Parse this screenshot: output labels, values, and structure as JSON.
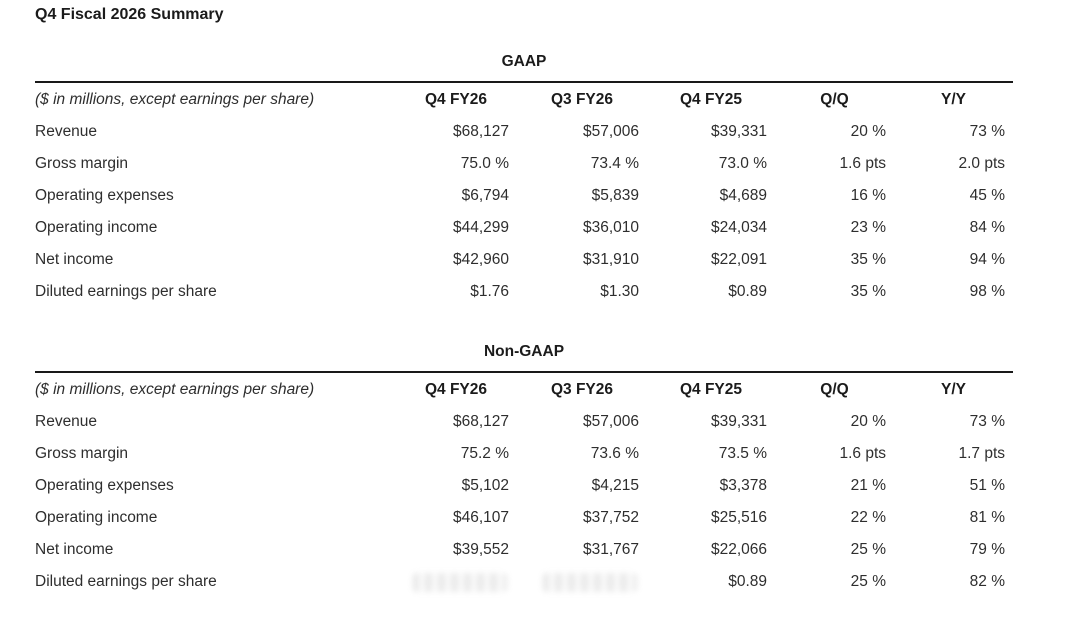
{
  "page": {
    "title": "Q4 Fiscal 2026 Summary"
  },
  "tables": [
    {
      "heading": "GAAP",
      "note": "($ in millions, except earnings per share)",
      "columns": [
        "Q4 FY26",
        "Q3 FY26",
        "Q4 FY25",
        "Q/Q",
        "Y/Y"
      ],
      "rows": [
        {
          "label": "Revenue",
          "values": [
            "$68,127",
            "$57,006",
            "$39,331",
            "20 %",
            "73 %"
          ]
        },
        {
          "label": "Gross margin",
          "values": [
            "75.0 %",
            "73.4 %",
            "73.0 %",
            "1.6 pts",
            "2.0 pts"
          ]
        },
        {
          "label": "Operating expenses",
          "values": [
            "$6,794",
            "$5,839",
            "$4,689",
            "16 %",
            "45 %"
          ]
        },
        {
          "label": "Operating income",
          "values": [
            "$44,299",
            "$36,010",
            "$24,034",
            "23 %",
            "84 %"
          ]
        },
        {
          "label": "Net income",
          "values": [
            "$42,960",
            "$31,910",
            "$22,091",
            "35 %",
            "94 %"
          ]
        },
        {
          "label": "Diluted earnings per share",
          "values": [
            "$1.76",
            "$1.30",
            "$0.89",
            "35 %",
            "98 %"
          ]
        }
      ]
    },
    {
      "heading": "Non-GAAP",
      "note": "($ in millions, except earnings per share)",
      "columns": [
        "Q4 FY26",
        "Q3 FY26",
        "Q4 FY25",
        "Q/Q",
        "Y/Y"
      ],
      "rows": [
        {
          "label": "Revenue",
          "values": [
            "$68,127",
            "$57,006",
            "$39,331",
            "20 %",
            "73 %"
          ]
        },
        {
          "label": "Gross margin",
          "values": [
            "75.2 %",
            "73.6 %",
            "73.5 %",
            "1.6 pts",
            "1.7 pts"
          ]
        },
        {
          "label": "Operating expenses",
          "values": [
            "$5,102",
            "$4,215",
            "$3,378",
            "21 %",
            "51 %"
          ]
        },
        {
          "label": "Operating income",
          "values": [
            "$46,107",
            "$37,752",
            "$25,516",
            "22 %",
            "81 %"
          ]
        },
        {
          "label": "Net income",
          "values": [
            "$39,552",
            "$31,767",
            "$22,066",
            "25 %",
            "79 %"
          ]
        },
        {
          "label": "Diluted earnings per share",
          "values": [
            null,
            null,
            "$0.89",
            "25 %",
            "82 %"
          ],
          "blurred": [
            0,
            1
          ]
        }
      ]
    }
  ]
}
